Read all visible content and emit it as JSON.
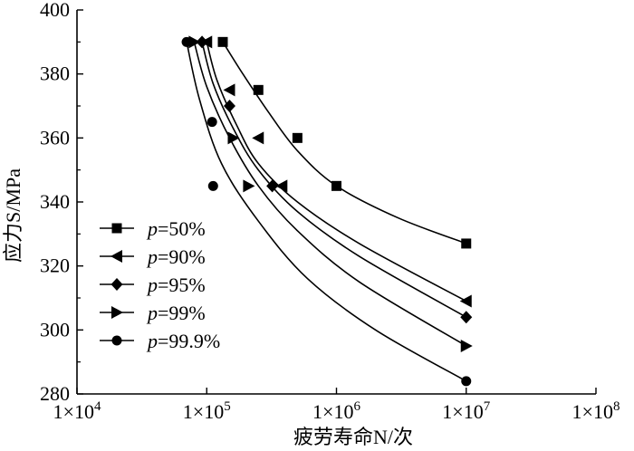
{
  "chart_data": {
    "type": "scatter",
    "title": "",
    "xlabel": "疲劳寿命N/次",
    "ylabel": "应力S/MPa",
    "xscale": "log",
    "xlim": [
      10000,
      100000000
    ],
    "ylim": [
      280,
      400
    ],
    "x_ticks": [
      10000,
      100000,
      1000000,
      10000000,
      100000000
    ],
    "x_tick_labels": [
      {
        "mant": "1×10",
        "exp": "4"
      },
      {
        "mant": "1×10",
        "exp": "5"
      },
      {
        "mant": "1×10",
        "exp": "6"
      },
      {
        "mant": "1×10",
        "exp": "7"
      },
      {
        "mant": "1×10",
        "exp": "8"
      }
    ],
    "y_ticks": [
      280,
      300,
      320,
      340,
      360,
      380,
      400
    ],
    "grid": false,
    "legend_position": "left-lower",
    "series": [
      {
        "name": "p=50%",
        "label_var": "p",
        "label_value": "=50%",
        "marker": "square",
        "points": [
          [
            133000,
            390
          ],
          [
            250000,
            375
          ],
          [
            500000,
            360
          ],
          [
            1000000,
            345
          ],
          [
            10000000,
            327
          ]
        ],
        "curve": [
          [
            133000,
            390
          ],
          [
            190000,
            380
          ],
          [
            300000,
            368
          ],
          [
            500000,
            356
          ],
          [
            1000000,
            345
          ],
          [
            3000000,
            335
          ],
          [
            10000000,
            327
          ]
        ]
      },
      {
        "name": "p=90%",
        "label_var": "p",
        "label_value": "=90%",
        "marker": "triangle-left",
        "points": [
          [
            100000,
            390
          ],
          [
            150000,
            375
          ],
          [
            250000,
            360
          ],
          [
            380000,
            345
          ],
          [
            10000000,
            309
          ]
        ],
        "curve": [
          [
            100000,
            390
          ],
          [
            120000,
            378
          ],
          [
            170000,
            364
          ],
          [
            250000,
            352
          ],
          [
            500000,
            340
          ],
          [
            1500000,
            327
          ],
          [
            10000000,
            309
          ]
        ]
      },
      {
        "name": "p=95%",
        "label_var": "p",
        "label_value": "=95%",
        "marker": "diamond",
        "points": [
          [
            92000,
            390
          ],
          [
            150000,
            370
          ],
          [
            320000,
            345
          ],
          [
            10000000,
            304
          ]
        ],
        "curve": [
          [
            92000,
            390
          ],
          [
            112000,
            377
          ],
          [
            160000,
            363
          ],
          [
            250000,
            350
          ],
          [
            500000,
            337
          ],
          [
            1500000,
            323
          ],
          [
            10000000,
            304
          ]
        ]
      },
      {
        "name": "p=99%",
        "label_var": "p",
        "label_value": "=99%",
        "marker": "triangle-right",
        "points": [
          [
            80000,
            390
          ],
          [
            160000,
            360
          ],
          [
            210000,
            345
          ],
          [
            10000000,
            295
          ]
        ],
        "curve": [
          [
            80000,
            390
          ],
          [
            100000,
            376
          ],
          [
            150000,
            360
          ],
          [
            250000,
            345
          ],
          [
            500000,
            331
          ],
          [
            1500000,
            315
          ],
          [
            10000000,
            295
          ]
        ]
      },
      {
        "name": "p=99.9%",
        "label_var": "p",
        "label_value": "=99.9%",
        "marker": "circle",
        "points": [
          [
            70000,
            390
          ],
          [
            110000,
            365
          ],
          [
            112000,
            345
          ],
          [
            10000000,
            284
          ]
        ],
        "curve": [
          [
            70000,
            390
          ],
          [
            88000,
            372
          ],
          [
            130000,
            352
          ],
          [
            250000,
            334
          ],
          [
            600000,
            316
          ],
          [
            2000000,
            300
          ],
          [
            10000000,
            284
          ]
        ]
      }
    ]
  }
}
